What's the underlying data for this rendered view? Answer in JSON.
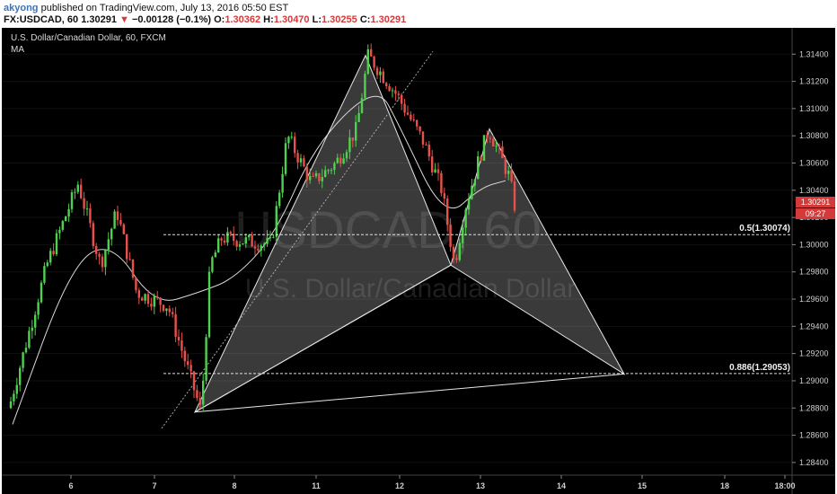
{
  "header": {
    "author": "akyong",
    "published": "published on TradingView.com, July 13, 2016 05:50 EST",
    "symbol_line_prefix": "FX:USDCAD, 60",
    "last": "1.30291",
    "change": "−0.00128 (−0.1%)",
    "open_label": "O:",
    "open": "1.30362",
    "high_label": "H:",
    "high": "1.30470",
    "low_label": "L:",
    "low": "1.30255",
    "close_label": "C:",
    "close": "1.30291"
  },
  "chart": {
    "title": "U.S. Dollar/Canadian Dollar, 60, FXCM",
    "indicator": "MA",
    "watermark_symbol": "USDCAD, 60",
    "watermark_name": "U.S. Dollar/Canadian Dollar",
    "price_tag": "1.30291",
    "timer_tag": "09:27",
    "fib_labels": [
      "0.5(1.30074)",
      "0.886(1.29053)"
    ],
    "colors": {
      "up": "#4fd14f",
      "down": "#e8504b",
      "tag": "#d43a3a",
      "background": "#000000"
    }
  },
  "chart_data": {
    "type": "candlestick",
    "symbol": "USDCAD",
    "interval": "60",
    "ylim": [
      1.2832,
      1.3158
    ],
    "yticks": [
      "1.31400",
      "1.31200",
      "1.31000",
      "1.30800",
      "1.30600",
      "1.30400",
      "1.30200",
      "1.30000",
      "1.29800",
      "1.29600",
      "1.29400",
      "1.29200",
      "1.29000",
      "1.28800",
      "1.28600",
      "1.28400"
    ],
    "xticks": [
      "6",
      "7",
      "8",
      "11",
      "12",
      "13",
      "14",
      "15",
      "18",
      "18:00"
    ],
    "last_price": 1.30291,
    "fib_levels": [
      {
        "label": "0.5(1.30074)",
        "price": 1.30074
      },
      {
        "label": "0.886(1.29053)",
        "price": 1.29053
      }
    ],
    "pattern_points": [
      {
        "time": "7",
        "price": 1.2877
      },
      {
        "time": "11",
        "price": 1.3139
      },
      {
        "time": "12",
        "price": 1.2985
      },
      {
        "time": "13",
        "price": 1.3085
      },
      {
        "time": "14",
        "price": 1.2905
      }
    ],
    "moving_average_path": [
      {
        "time": "5",
        "price": 1.2868
      },
      {
        "time": "6",
        "price": 1.2985
      },
      {
        "time": "6",
        "price": 1.3003
      },
      {
        "time": "7",
        "price": 1.2955
      },
      {
        "time": "7",
        "price": 1.2965
      },
      {
        "time": "8",
        "price": 1.2975
      },
      {
        "time": "8",
        "price": 1.3007
      },
      {
        "time": "11",
        "price": 1.3075
      },
      {
        "time": "11",
        "price": 1.3118
      },
      {
        "time": "12",
        "price": 1.3087
      },
      {
        "time": "12",
        "price": 1.3018
      },
      {
        "time": "13",
        "price": 1.3042
      },
      {
        "time": "13",
        "price": 1.3047
      }
    ]
  }
}
